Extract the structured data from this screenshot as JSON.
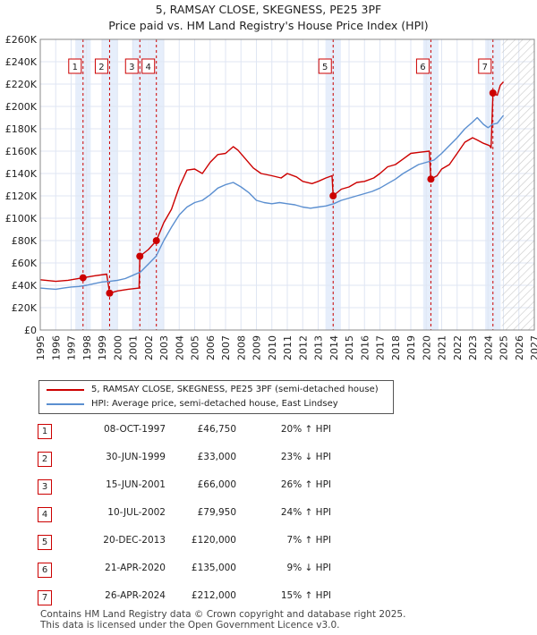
{
  "title": "5, RAMSAY CLOSE, SKEGNESS, PE25 3PF",
  "subtitle": "Price paid vs. HM Land Registry's House Price Index (HPI)",
  "legend": {
    "property": "5, RAMSAY CLOSE, SKEGNESS, PE25 3PF (semi-detached house)",
    "hpi": "HPI: Average price, semi-detached house, East Lindsey"
  },
  "colors": {
    "property": "#cc0000",
    "hpi": "#5b8fd0",
    "band": "#e6eefb",
    "future_hatch": "#c8c8c8",
    "grid": "#dfe6f3"
  },
  "sales": [
    {
      "num": "1",
      "date": "08-OCT-1997",
      "price": "£46,750",
      "hpi": "20% ↑ HPI"
    },
    {
      "num": "2",
      "date": "30-JUN-1999",
      "price": "£33,000",
      "hpi": "23% ↓ HPI"
    },
    {
      "num": "3",
      "date": "15-JUN-2001",
      "price": "£66,000",
      "hpi": "26% ↑ HPI"
    },
    {
      "num": "4",
      "date": "10-JUL-2002",
      "price": "£79,950",
      "hpi": "24% ↑ HPI"
    },
    {
      "num": "5",
      "date": "20-DEC-2013",
      "price": "£120,000",
      "hpi": "7% ↑ HPI"
    },
    {
      "num": "6",
      "date": "21-APR-2020",
      "price": "£135,000",
      "hpi": "9% ↓ HPI"
    },
    {
      "num": "7",
      "date": "26-APR-2024",
      "price": "£212,000",
      "hpi": "15% ↑ HPI"
    }
  ],
  "footer": {
    "line1": "Contains HM Land Registry data © Crown copyright and database right 2025.",
    "line2": "This data is licensed under the Open Government Licence v3.0."
  },
  "chart_data": {
    "type": "line",
    "title": "5, RAMSAY CLOSE, SKEGNESS, PE25 3PF",
    "xlabel": "",
    "ylabel": "",
    "xlim": [
      1995,
      2027
    ],
    "ylim": [
      0,
      260000
    ],
    "x_ticks": [
      1995,
      1996,
      1997,
      1998,
      1999,
      2000,
      2001,
      2002,
      2003,
      2004,
      2005,
      2006,
      2007,
      2008,
      2009,
      2010,
      2011,
      2012,
      2013,
      2014,
      2015,
      2016,
      2017,
      2018,
      2019,
      2020,
      2021,
      2022,
      2023,
      2024,
      2025,
      2026,
      2027
    ],
    "y_ticks": [
      0,
      20000,
      40000,
      60000,
      80000,
      100000,
      120000,
      140000,
      160000,
      180000,
      200000,
      220000,
      240000,
      260000
    ],
    "y_tick_labels": [
      "£0",
      "£20K",
      "£40K",
      "£60K",
      "£80K",
      "£100K",
      "£120K",
      "£140K",
      "£160K",
      "£180K",
      "£200K",
      "£220K",
      "£240K",
      "£260K"
    ],
    "future_start": 2024.9,
    "sale_markers": [
      {
        "label": "1",
        "x": 1997.77,
        "y": 46750
      },
      {
        "label": "2",
        "x": 1999.49,
        "y": 33000
      },
      {
        "label": "3",
        "x": 2001.45,
        "y": 66000
      },
      {
        "label": "4",
        "x": 2002.52,
        "y": 79950
      },
      {
        "label": "5",
        "x": 2013.97,
        "y": 120000
      },
      {
        "label": "6",
        "x": 2020.3,
        "y": 135000
      },
      {
        "label": "7",
        "x": 2024.32,
        "y": 212000
      }
    ],
    "series": [
      {
        "name": "5, RAMSAY CLOSE, SKEGNESS, PE25 3PF (semi-detached house)",
        "points": [
          [
            1995,
            45000
          ],
          [
            1996,
            43500
          ],
          [
            1996.8,
            44500
          ],
          [
            1997.77,
            46750
          ],
          [
            1998.5,
            48500
          ],
          [
            1999.3,
            50000
          ],
          [
            1999.49,
            33000
          ],
          [
            2000,
            35000
          ],
          [
            2000.7,
            36500
          ],
          [
            2001.4,
            37500
          ],
          [
            2001.45,
            66000
          ],
          [
            2002,
            72000
          ],
          [
            2002.52,
            79950
          ],
          [
            2003,
            96000
          ],
          [
            2003.5,
            108000
          ],
          [
            2004,
            128000
          ],
          [
            2004.5,
            143000
          ],
          [
            2005,
            144000
          ],
          [
            2005.5,
            140000
          ],
          [
            2006,
            150000
          ],
          [
            2006.5,
            157000
          ],
          [
            2007,
            158000
          ],
          [
            2007.5,
            164000
          ],
          [
            2007.8,
            161000
          ],
          [
            2008.3,
            153000
          ],
          [
            2008.8,
            145000
          ],
          [
            2009.3,
            140000
          ],
          [
            2010,
            138000
          ],
          [
            2010.6,
            136000
          ],
          [
            2011,
            140000
          ],
          [
            2011.6,
            137000
          ],
          [
            2012,
            133000
          ],
          [
            2012.6,
            131000
          ],
          [
            2013,
            133000
          ],
          [
            2013.5,
            136000
          ],
          [
            2013.9,
            138000
          ],
          [
            2013.97,
            120000
          ],
          [
            2014.5,
            126000
          ],
          [
            2015,
            128000
          ],
          [
            2015.5,
            132000
          ],
          [
            2016,
            133000
          ],
          [
            2016.6,
            136000
          ],
          [
            2017,
            140000
          ],
          [
            2017.5,
            146000
          ],
          [
            2018,
            148000
          ],
          [
            2018.5,
            153000
          ],
          [
            2019,
            158000
          ],
          [
            2019.6,
            159000
          ],
          [
            2020.2,
            160000
          ],
          [
            2020.3,
            135000
          ],
          [
            2020.7,
            138000
          ],
          [
            2021,
            144000
          ],
          [
            2021.5,
            148000
          ],
          [
            2022,
            158000
          ],
          [
            2022.5,
            168000
          ],
          [
            2023,
            172000
          ],
          [
            2023.3,
            170000
          ],
          [
            2023.7,
            167000
          ],
          [
            2024.1,
            165000
          ],
          [
            2024.2,
            163000
          ],
          [
            2024.32,
            212000
          ],
          [
            2024.6,
            210000
          ],
          [
            2024.8,
            219000
          ],
          [
            2025,
            222000
          ]
        ]
      },
      {
        "name": "HPI: Average price, semi-detached house, East Lindsey",
        "points": [
          [
            1995,
            37500
          ],
          [
            1995.5,
            37000
          ],
          [
            1996,
            36500
          ],
          [
            1996.5,
            37500
          ],
          [
            1997,
            38500
          ],
          [
            1997.5,
            39000
          ],
          [
            1998,
            40000
          ],
          [
            1998.5,
            41500
          ],
          [
            1999,
            43000
          ],
          [
            1999.5,
            43500
          ],
          [
            2000,
            44500
          ],
          [
            2000.5,
            46000
          ],
          [
            2001,
            49000
          ],
          [
            2001.5,
            52000
          ],
          [
            2002,
            59000
          ],
          [
            2002.5,
            66000
          ],
          [
            2003,
            80000
          ],
          [
            2003.5,
            92000
          ],
          [
            2004,
            103000
          ],
          [
            2004.5,
            110000
          ],
          [
            2005,
            114000
          ],
          [
            2005.5,
            116000
          ],
          [
            2006,
            121000
          ],
          [
            2006.5,
            127000
          ],
          [
            2007,
            130000
          ],
          [
            2007.5,
            132000
          ],
          [
            2008,
            128000
          ],
          [
            2008.5,
            123000
          ],
          [
            2009,
            116000
          ],
          [
            2009.5,
            114000
          ],
          [
            2010,
            113000
          ],
          [
            2010.5,
            114000
          ],
          [
            2011,
            113000
          ],
          [
            2011.5,
            112000
          ],
          [
            2012,
            110000
          ],
          [
            2012.5,
            109000
          ],
          [
            2013,
            110000
          ],
          [
            2013.5,
            111000
          ],
          [
            2014,
            113000
          ],
          [
            2014.5,
            116000
          ],
          [
            2015,
            118000
          ],
          [
            2015.5,
            120000
          ],
          [
            2016,
            122000
          ],
          [
            2016.5,
            124000
          ],
          [
            2017,
            127000
          ],
          [
            2017.5,
            131000
          ],
          [
            2018,
            135000
          ],
          [
            2018.5,
            140000
          ],
          [
            2019,
            144000
          ],
          [
            2019.5,
            148000
          ],
          [
            2020,
            150000
          ],
          [
            2020.5,
            152000
          ],
          [
            2021,
            158000
          ],
          [
            2021.5,
            165000
          ],
          [
            2022,
            172000
          ],
          [
            2022.5,
            180000
          ],
          [
            2023,
            186000
          ],
          [
            2023.3,
            190000
          ],
          [
            2023.7,
            184000
          ],
          [
            2024,
            181000
          ],
          [
            2024.3,
            184000
          ],
          [
            2024.6,
            185000
          ],
          [
            2025,
            192000
          ]
        ]
      }
    ]
  }
}
